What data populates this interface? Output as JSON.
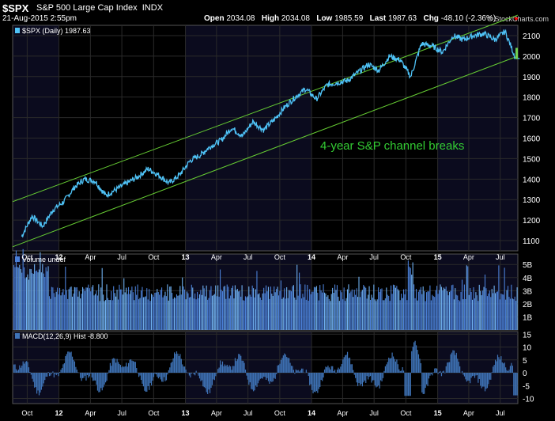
{
  "header": {
    "symbol": "$SPX",
    "name": "S&P 500 Large Cap Index",
    "exchange": "INDX",
    "date": "21-Aug-2015 2:55pm",
    "open_label": "Open",
    "open": "2034.08",
    "high_label": "High",
    "high": "2034.08",
    "low_label": "Low",
    "low": "1985.59",
    "last_label": "Last",
    "last": "1987.63",
    "chg_label": "Chg",
    "chg": "-48.10 (-2.36%)",
    "watermark": "© StockCharts.com"
  },
  "colors": {
    "background": "#000000",
    "price_line": "#4fc3f7",
    "channel_line": "#66cc33",
    "annotation": "#33cc33",
    "volume_bar": "#4a7fd6",
    "volume_bar_light": "#6fb0f0",
    "macd_hist": "#3f74b8",
    "grid": "#2a2a2a",
    "shade": "#0b0b1e",
    "down_arrow": "#e00000"
  },
  "chart_data": [
    {
      "type": "line",
      "legend": "$SPX (Daily) 1987.63",
      "annotation": "4-year S&P channel breaks",
      "y_ticks": [
        "2100",
        "2000",
        "1900",
        "1800",
        "1700",
        "1600",
        "1500",
        "1400",
        "1300",
        "1200",
        "1100"
      ],
      "ylim": [
        1050,
        2150
      ],
      "x_ticks": [
        "Oct",
        "12",
        "Apr",
        "Jul",
        "Oct",
        "13",
        "Apr",
        "Jul",
        "Oct",
        "14",
        "Apr",
        "Jul",
        "Oct",
        "15",
        "Apr",
        "Jul"
      ],
      "x": [
        "2011-09",
        "2011-10",
        "2011-11",
        "2011-12",
        "2012-01",
        "2012-02",
        "2012-03",
        "2012-04",
        "2012-05",
        "2012-06",
        "2012-07",
        "2012-08",
        "2012-09",
        "2012-10",
        "2012-11",
        "2012-12",
        "2013-01",
        "2013-02",
        "2013-03",
        "2013-04",
        "2013-05",
        "2013-06",
        "2013-07",
        "2013-08",
        "2013-09",
        "2013-10",
        "2013-11",
        "2013-12",
        "2014-01",
        "2014-02",
        "2014-03",
        "2014-04",
        "2014-05",
        "2014-06",
        "2014-07",
        "2014-08",
        "2014-09",
        "2014-10",
        "2014-11",
        "2014-12",
        "2015-01",
        "2015-02",
        "2015-03",
        "2015-04",
        "2015-05",
        "2015-06",
        "2015-07",
        "2015-08"
      ],
      "values": [
        1120,
        1220,
        1170,
        1250,
        1290,
        1360,
        1400,
        1390,
        1320,
        1350,
        1380,
        1410,
        1450,
        1420,
        1380,
        1420,
        1490,
        1520,
        1560,
        1590,
        1650,
        1610,
        1680,
        1640,
        1690,
        1750,
        1800,
        1840,
        1790,
        1860,
        1870,
        1880,
        1920,
        1960,
        1930,
        2000,
        1980,
        1900,
        2060,
        2050,
        2020,
        2100,
        2080,
        2100,
        2110,
        2080,
        2120,
        1987.63
      ],
      "channel_upper": [
        [
          "2011-09",
          1290
        ],
        [
          "2015-08",
          2200
        ]
      ],
      "channel_lower": [
        [
          "2011-09",
          1070
        ],
        [
          "2015-08",
          2000
        ]
      ]
    },
    {
      "type": "bar",
      "legend": "Volume undef",
      "y_ticks": [
        "5B",
        "4B",
        "3B",
        "2B",
        "1B"
      ],
      "ylim": [
        0,
        5.8
      ]
    },
    {
      "type": "bar",
      "legend": "MACD(12,26,9) Hist -8.800",
      "y_ticks": [
        "15",
        "10",
        "5",
        "0",
        "-5",
        "-10"
      ],
      "ylim": [
        -12,
        16
      ],
      "last_value": -8.8
    }
  ]
}
